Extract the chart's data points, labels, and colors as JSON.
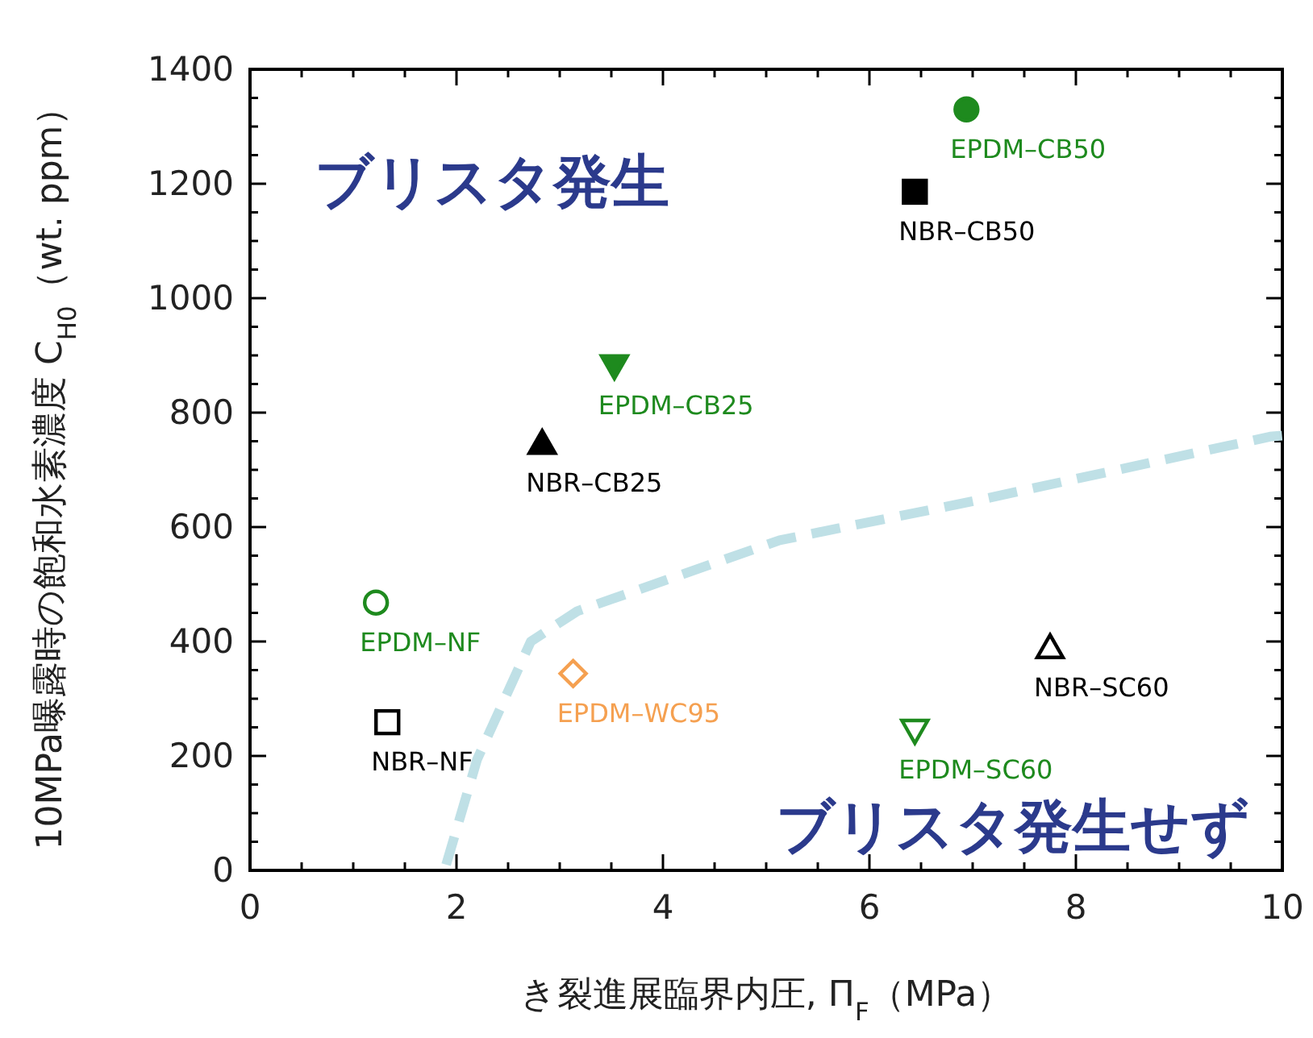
{
  "chart_data": {
    "type": "scatter",
    "xlabel": "き裂進展臨界内圧, Π$_{F}$（MPa）",
    "ylabel": "10MPa曝露時の飽和水素濃度 C$_{H0}$（wt. ppm）",
    "xlim": [
      0,
      10
    ],
    "xticks": [
      0,
      2,
      4,
      6,
      8,
      10
    ],
    "ylim": [
      0,
      1400
    ],
    "yticks": [
      0,
      200,
      400,
      600,
      800,
      1000,
      1200,
      1400
    ],
    "annotations": [
      "ブリスタ発生",
      "ブリスタ発生せず"
    ],
    "series": [
      {
        "name": "EPDM–CB50",
        "color": "#1e8a1e",
        "marker": "circle",
        "x": [
          6.94
        ],
        "values": [
          1330
        ]
      },
      {
        "name": "NBR–CB50",
        "color": "#000000",
        "marker": "square",
        "x": [
          6.44
        ],
        "values": [
          1186
        ]
      },
      {
        "name": "EPDM–CB25",
        "color": "#1e8a1e",
        "marker": "triangle-down",
        "x": [
          3.53
        ],
        "values": [
          882
        ]
      },
      {
        "name": "NBR–CB25",
        "color": "#000000",
        "marker": "triangle",
        "x": [
          2.83
        ],
        "values": [
          746
        ]
      },
      {
        "name": "EPDM–NF",
        "color": "#1e8a1e",
        "marker": "circle-open",
        "x": [
          1.22
        ],
        "values": [
          468
        ]
      },
      {
        "name": "NBR–NF",
        "color": "#000000",
        "marker": "square-open",
        "x": [
          1.33
        ],
        "values": [
          259
        ]
      },
      {
        "name": "EPDM–WC95",
        "color": "#f5a050",
        "marker": "diamond-open",
        "x": [
          3.13
        ],
        "values": [
          344
        ]
      },
      {
        "name": "NBR–SC60",
        "color": "#000000",
        "marker": "triangle-open",
        "x": [
          7.75
        ],
        "values": [
          389
        ]
      },
      {
        "name": "EPDM–SC60",
        "color": "#1e8a1e",
        "marker": "triangle-down-open",
        "x": [
          6.44
        ],
        "values": [
          245
        ]
      },
      {
        "type": "line",
        "color": "#bfe0e6",
        "line_style": "dashed",
        "marker": "none",
        "x": [
          1.9,
          2.2,
          2.72,
          3.17,
          5.13,
          7.08,
          9.88,
          10
        ],
        "values": [
          10,
          194,
          400,
          453,
          577,
          648,
          758,
          760
        ]
      }
    ]
  }
}
